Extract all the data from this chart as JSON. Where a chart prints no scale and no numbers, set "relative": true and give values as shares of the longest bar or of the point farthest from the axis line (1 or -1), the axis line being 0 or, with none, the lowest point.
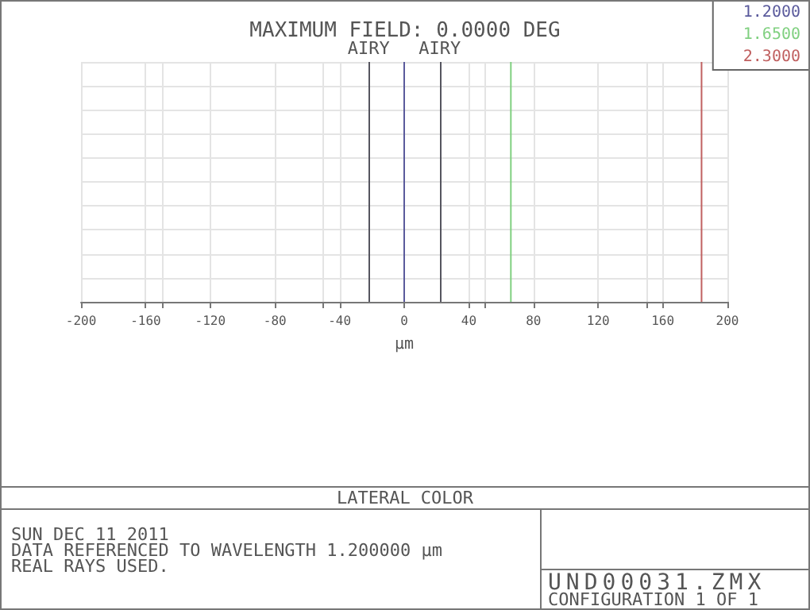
{
  "chart_data": {
    "type": "line",
    "title": "LATERAL COLOR",
    "subtitle": "MAXIMUM FIELD: 0.0000 DEG",
    "xlabel": "µm",
    "relative": true,
    "series": [
      {
        "name": "1.2000",
        "color": "#5a5a9c",
        "x": [
          0,
          0
        ],
        "values": [
          0,
          1
        ]
      },
      {
        "name": "1.6500",
        "color": "#80d080",
        "x": [
          66,
          66
        ],
        "values": [
          0,
          1
        ]
      },
      {
        "name": "2.3000",
        "color": "#c06060",
        "x": [
          184,
          184
        ],
        "values": [
          0,
          1
        ]
      }
    ],
    "xlim": [
      -200,
      200
    ],
    "xticks": [
      -200,
      -160,
      -120,
      -80,
      -40,
      0,
      40,
      80,
      120,
      160,
      200
    ],
    "ref_lines": [
      {
        "axis": "x",
        "value": -22,
        "label": "AIRY",
        "color": "#55555f"
      },
      {
        "axis": "x",
        "value": 22,
        "label": "AIRY",
        "color": "#55555f"
      }
    ],
    "grid": true,
    "legend": "top right",
    "marker": "none",
    "line_style": "solid",
    "annotations": [
      "SUN DEC 11 2011",
      "DATA REFERENCED TO WAVELENGTH 1.200000 µm",
      "REAL RAYS USED.",
      "UND00031.ZMX",
      "CONFIGURATION 1 OF 1"
    ]
  }
}
